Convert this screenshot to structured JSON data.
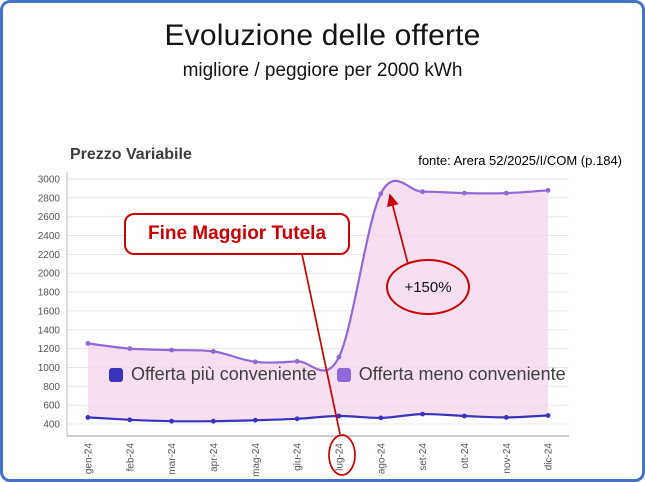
{
  "slide": {
    "title": "Evoluzione delle offerte",
    "subtitle": "migliore / peggiore per 2000 kWh",
    "source_note": "fonte: Arera 52/2025/I/COM (p.184)",
    "border_color": "#4472c4"
  },
  "chart_data": {
    "type": "line",
    "title": "Prezzo Variabile",
    "categories": [
      "gen-24",
      "feb-24",
      "mar-24",
      "apr-24",
      "mag-24",
      "giu-24",
      "lug-24",
      "ago-24",
      "set-24",
      "ott-24",
      "nov-24",
      "dic-24"
    ],
    "series": [
      {
        "name": "Offerta più conveniente",
        "color": "#3a33bd",
        "values": [
          470,
          445,
          430,
          430,
          440,
          455,
          485,
          465,
          505,
          485,
          470,
          490
        ]
      },
      {
        "name": "Offerta meno conveniente",
        "color": "#9168d8",
        "values": [
          1255,
          1200,
          1185,
          1170,
          1060,
          1065,
          1110,
          2845,
          2865,
          2850,
          2850,
          2880
        ]
      }
    ],
    "ylim": [
      400,
      3000
    ],
    "ytick_step": 200,
    "grid": true,
    "band_fill": "#f3d7ee",
    "legend_position": "inside-bottom"
  },
  "annotations": {
    "box_label": "Fine Maggior Tutela",
    "pct_label": "+150%",
    "circled_category": "lug-24",
    "accent_color": "#cc0000"
  }
}
